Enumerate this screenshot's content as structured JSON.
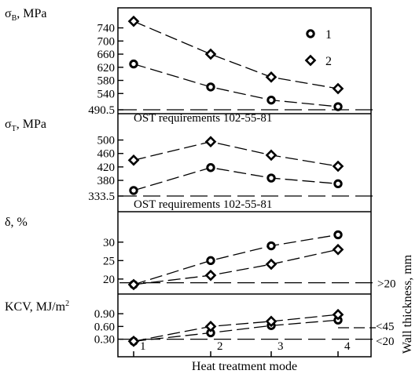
{
  "chart_data": {
    "type": "line",
    "xlabel": "Heat treatment mode",
    "x_ticks": [
      "1",
      "2",
      "3",
      "4"
    ],
    "secondary_axis_label": "Wall thickness, mm",
    "legend": [
      {
        "label": "1",
        "marker": "circle"
      },
      {
        "label": "2",
        "marker": "diamond"
      }
    ],
    "panels": [
      {
        "ylabel": "σB, MPa",
        "ylabel_main": "σ",
        "ylabel_sub": "B",
        "ylabel_rest": ", MPa",
        "ticks": [
          "740",
          "700",
          "660",
          "620",
          "580",
          "540",
          "490.5"
        ],
        "tick_values": [
          740,
          700,
          660,
          620,
          580,
          540,
          490.5
        ],
        "ylim": [
          490.5,
          770
        ],
        "requirement": {
          "value": 490.5,
          "label": "OST requirements 102-55-81"
        },
        "series": [
          {
            "name": "1",
            "marker": "circle",
            "values": [
              630,
              560,
              520,
              500
            ]
          },
          {
            "name": "2",
            "marker": "diamond",
            "values": [
              760,
              660,
              590,
              555
            ]
          }
        ]
      },
      {
        "ylabel": "σT, MPa",
        "ylabel_main": "σ",
        "ylabel_sub": "T",
        "ylabel_rest": ", MPa",
        "ticks": [
          "500",
          "460",
          "420",
          "380",
          "333.5"
        ],
        "tick_values": [
          500,
          460,
          420,
          380,
          333.5
        ],
        "ylim": [
          333.5,
          520
        ],
        "requirement": {
          "value": 333.5,
          "label": "OST requirements 102-55-81"
        },
        "series": [
          {
            "name": "1",
            "marker": "circle",
            "values": [
              350,
              418,
              387,
              370
            ]
          },
          {
            "name": "2",
            "marker": "diamond",
            "values": [
              440,
              495,
              455,
              422
            ]
          }
        ]
      },
      {
        "ylabel": "δ, %",
        "ylabel_main": "δ",
        "ylabel_sub": "",
        "ylabel_rest": ", %",
        "ticks": [
          "30",
          "25",
          "20"
        ],
        "tick_values": [
          30,
          25,
          20
        ],
        "ylim": [
          17,
          34
        ],
        "requirement": {
          "value": 19,
          "label": ""
        },
        "side_label": ">20",
        "series": [
          {
            "name": "1",
            "marker": "circle",
            "values": [
              18.5,
              25,
              29,
              32
            ]
          },
          {
            "name": "2",
            "marker": "diamond",
            "values": [
              18.5,
              21,
              24,
              28
            ]
          }
        ]
      },
      {
        "ylabel": "KCV, MJ/m2",
        "ylabel_main": "KCV, MJ/m",
        "ylabel_sub": "",
        "ylabel_sup": "2",
        "ylabel_rest": "",
        "ticks": [
          "0.90",
          "0.60",
          "0.30"
        ],
        "tick_values": [
          0.9,
          0.6,
          0.3
        ],
        "ylim": [
          0.2,
          1.05
        ],
        "requirement": {
          "value": 0.3,
          "label": ""
        },
        "side_labels": [
          "<45",
          "<20"
        ],
        "series": [
          {
            "name": "1",
            "marker": "circle",
            "values": [
              0.25,
              0.45,
              0.62,
              0.75
            ]
          },
          {
            "name": "2",
            "marker": "diamond",
            "values": [
              0.25,
              0.6,
              0.72,
              0.88
            ]
          }
        ]
      }
    ]
  }
}
